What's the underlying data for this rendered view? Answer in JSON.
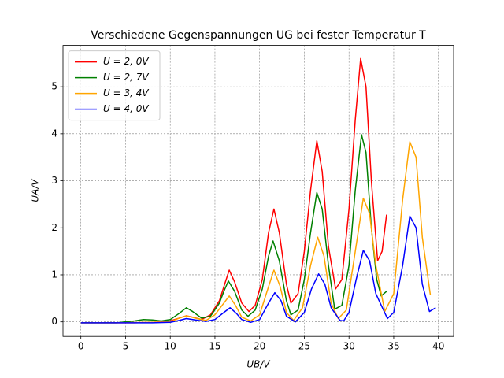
{
  "chart_data": {
    "type": "line",
    "title": "Verschiedene Gegenspannungen UG bei fester Temperatur T",
    "x_label": "UB/V",
    "y_label": "UA/V",
    "xlim": [
      -2,
      41.7
    ],
    "ylim": [
      -0.31,
      5.88
    ],
    "xticks": [
      0,
      5,
      10,
      15,
      20,
      25,
      30,
      35,
      40
    ],
    "yticks": [
      0,
      1,
      2,
      3,
      4,
      5
    ],
    "grid": true,
    "legend": "upper left",
    "series": [
      {
        "name": "U = 2, 0V",
        "color": "#ff0000",
        "x": [
          0,
          2,
          4,
          6,
          8,
          9,
          10,
          11,
          11.8,
          12.5,
          13.5,
          14.5,
          15.5,
          16,
          16.6,
          17.2,
          18,
          18.8,
          19.5,
          20.3,
          21,
          21.6,
          22.2,
          23,
          23.5,
          24.3,
          25,
          25.7,
          26.4,
          27,
          27.7,
          28.5,
          29.2,
          30,
          30.7,
          31.3,
          31.9,
          32.5,
          33.2,
          33.7,
          34.2
        ],
        "values": [
          -0.02,
          -0.02,
          -0.02,
          -0.02,
          -0.01,
          0,
          0.02,
          0.08,
          0.13,
          0.1,
          0.05,
          0.15,
          0.45,
          0.75,
          1.1,
          0.85,
          0.4,
          0.22,
          0.35,
          0.9,
          1.9,
          2.4,
          1.9,
          0.8,
          0.4,
          0.6,
          1.5,
          2.8,
          3.85,
          3.2,
          1.6,
          0.7,
          0.9,
          2.4,
          4.3,
          5.6,
          5.0,
          3.0,
          1.3,
          1.5,
          2.28
        ]
      },
      {
        "name": "U = 2, 7V",
        "color": "#008000",
        "x": [
          0,
          2,
          4,
          6,
          7,
          8,
          9,
          10,
          11,
          11.8,
          12.5,
          13.5,
          14.5,
          15.5,
          16,
          16.5,
          17.2,
          18,
          18.7,
          19.5,
          20.3,
          21,
          21.5,
          22.2,
          23,
          23.5,
          24.3,
          25,
          25.7,
          26.4,
          27,
          27.7,
          28.4,
          29.2,
          30,
          30.7,
          31.4,
          31.9,
          32.5,
          33.1,
          33.6,
          34.2
        ],
        "values": [
          -0.02,
          -0.02,
          -0.02,
          0.02,
          0.05,
          0.04,
          0.02,
          0.05,
          0.18,
          0.3,
          0.22,
          0.08,
          0.12,
          0.4,
          0.65,
          0.87,
          0.65,
          0.25,
          0.12,
          0.25,
          0.7,
          1.4,
          1.72,
          1.3,
          0.45,
          0.15,
          0.25,
          0.9,
          1.9,
          2.75,
          2.4,
          1.2,
          0.27,
          0.35,
          1.2,
          2.8,
          3.98,
          3.6,
          2.0,
          0.9,
          0.55,
          0.65
        ]
      },
      {
        "name": "U = 3, 4V",
        "color": "#ffa500",
        "x": [
          0,
          4,
          8,
          10,
          11,
          11.8,
          12.8,
          14,
          15,
          16,
          16.6,
          17.3,
          18,
          19,
          20,
          21,
          21.6,
          22.3,
          23,
          23.8,
          24.8,
          25.7,
          26.5,
          27.2,
          28,
          28.8,
          29.7,
          30.7,
          31.6,
          32.3,
          33,
          34,
          35,
          36,
          36.8,
          37.5,
          38.2,
          39.1
        ],
        "values": [
          -0.02,
          -0.02,
          -0.01,
          0,
          0.08,
          0.13,
          0.08,
          0.03,
          0.15,
          0.4,
          0.55,
          0.35,
          0.1,
          0.02,
          0.15,
          0.75,
          1.1,
          0.75,
          0.2,
          0.03,
          0.3,
          1.2,
          1.8,
          1.4,
          0.4,
          0.07,
          0.25,
          1.5,
          2.63,
          2.3,
          1.2,
          0.22,
          0.6,
          2.6,
          3.83,
          3.5,
          1.8,
          0.57
        ]
      },
      {
        "name": "U = 4, 0V",
        "color": "#0000ff",
        "x": [
          0,
          4,
          8,
          10,
          11,
          11.8,
          12.8,
          14,
          15,
          16,
          16.7,
          17.4,
          18,
          19,
          20,
          21,
          21.7,
          22.4,
          23,
          24,
          25,
          25.8,
          26.6,
          27.3,
          28,
          29,
          29.4,
          30,
          30.8,
          31.6,
          32.3,
          33,
          34.3,
          35,
          36,
          36.8,
          37.5,
          38.2,
          39,
          39.7
        ],
        "values": [
          -0.02,
          -0.02,
          -0.02,
          -0.01,
          0.03,
          0.07,
          0.04,
          0.01,
          0.05,
          0.2,
          0.3,
          0.18,
          0.05,
          -0.01,
          0.05,
          0.4,
          0.62,
          0.45,
          0.12,
          0,
          0.2,
          0.7,
          1.02,
          0.8,
          0.3,
          0.03,
          0.02,
          0.2,
          0.9,
          1.52,
          1.3,
          0.6,
          0.07,
          0.2,
          1.2,
          2.25,
          2.0,
          0.8,
          0.22,
          0.3
        ]
      }
    ]
  }
}
